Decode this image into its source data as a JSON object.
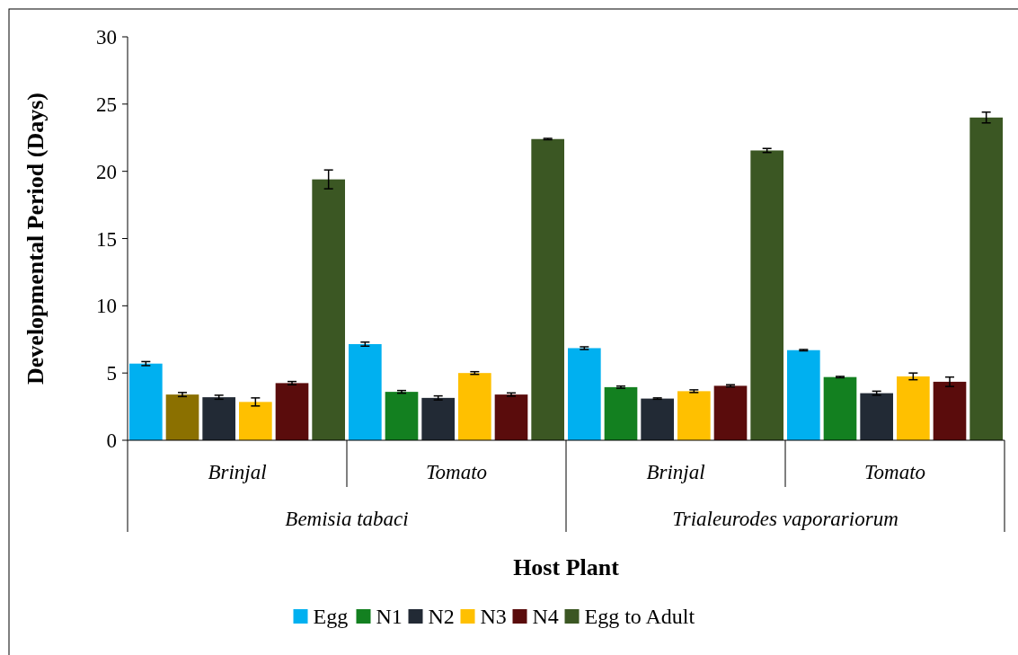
{
  "chart_data": {
    "type": "bar",
    "xlabel": "Host Plant",
    "ylabel": "Developmental Period (Days)",
    "categories": [
      "Brinjal",
      "Tomato",
      "Brinjal",
      "Tomato"
    ],
    "annotations": [
      "Bemisia tabaci",
      "Trialeurodes vaporariorum"
    ],
    "series": [
      {
        "name": "Egg",
        "color": "#00b0f0",
        "values": [
          5.7,
          7.15,
          6.85,
          6.7
        ],
        "errors": [
          0.15,
          0.15,
          0.1,
          0.05
        ]
      },
      {
        "name": "N1",
        "color": "#138020",
        "colors": [
          "#8b7000",
          "#138020",
          "#138020",
          "#138020"
        ],
        "values": [
          3.4,
          3.6,
          3.95,
          4.7
        ],
        "errors": [
          0.15,
          0.1,
          0.08,
          0.05
        ]
      },
      {
        "name": "N2",
        "color": "#222a35",
        "values": [
          3.2,
          3.15,
          3.1,
          3.5
        ],
        "errors": [
          0.15,
          0.15,
          0.05,
          0.15
        ]
      },
      {
        "name": "N3",
        "color": "#ffc000",
        "values": [
          2.85,
          5.0,
          3.65,
          4.75
        ],
        "errors": [
          0.3,
          0.1,
          0.1,
          0.25
        ]
      },
      {
        "name": "N4",
        "color": "#5a0c0c",
        "values": [
          4.25,
          3.4,
          4.05,
          4.35
        ],
        "errors": [
          0.12,
          0.12,
          0.08,
          0.35
        ]
      },
      {
        "name": "Egg to Adult",
        "color": "#3b5723",
        "values": [
          19.4,
          22.4,
          21.55,
          24.0
        ],
        "errors": [
          0.7,
          0.05,
          0.15,
          0.4
        ]
      }
    ],
    "ylim": [
      0,
      30
    ],
    "yticks": [
      0,
      5,
      10,
      15,
      20,
      25,
      30
    ],
    "grid": false,
    "legend": "bottom"
  }
}
